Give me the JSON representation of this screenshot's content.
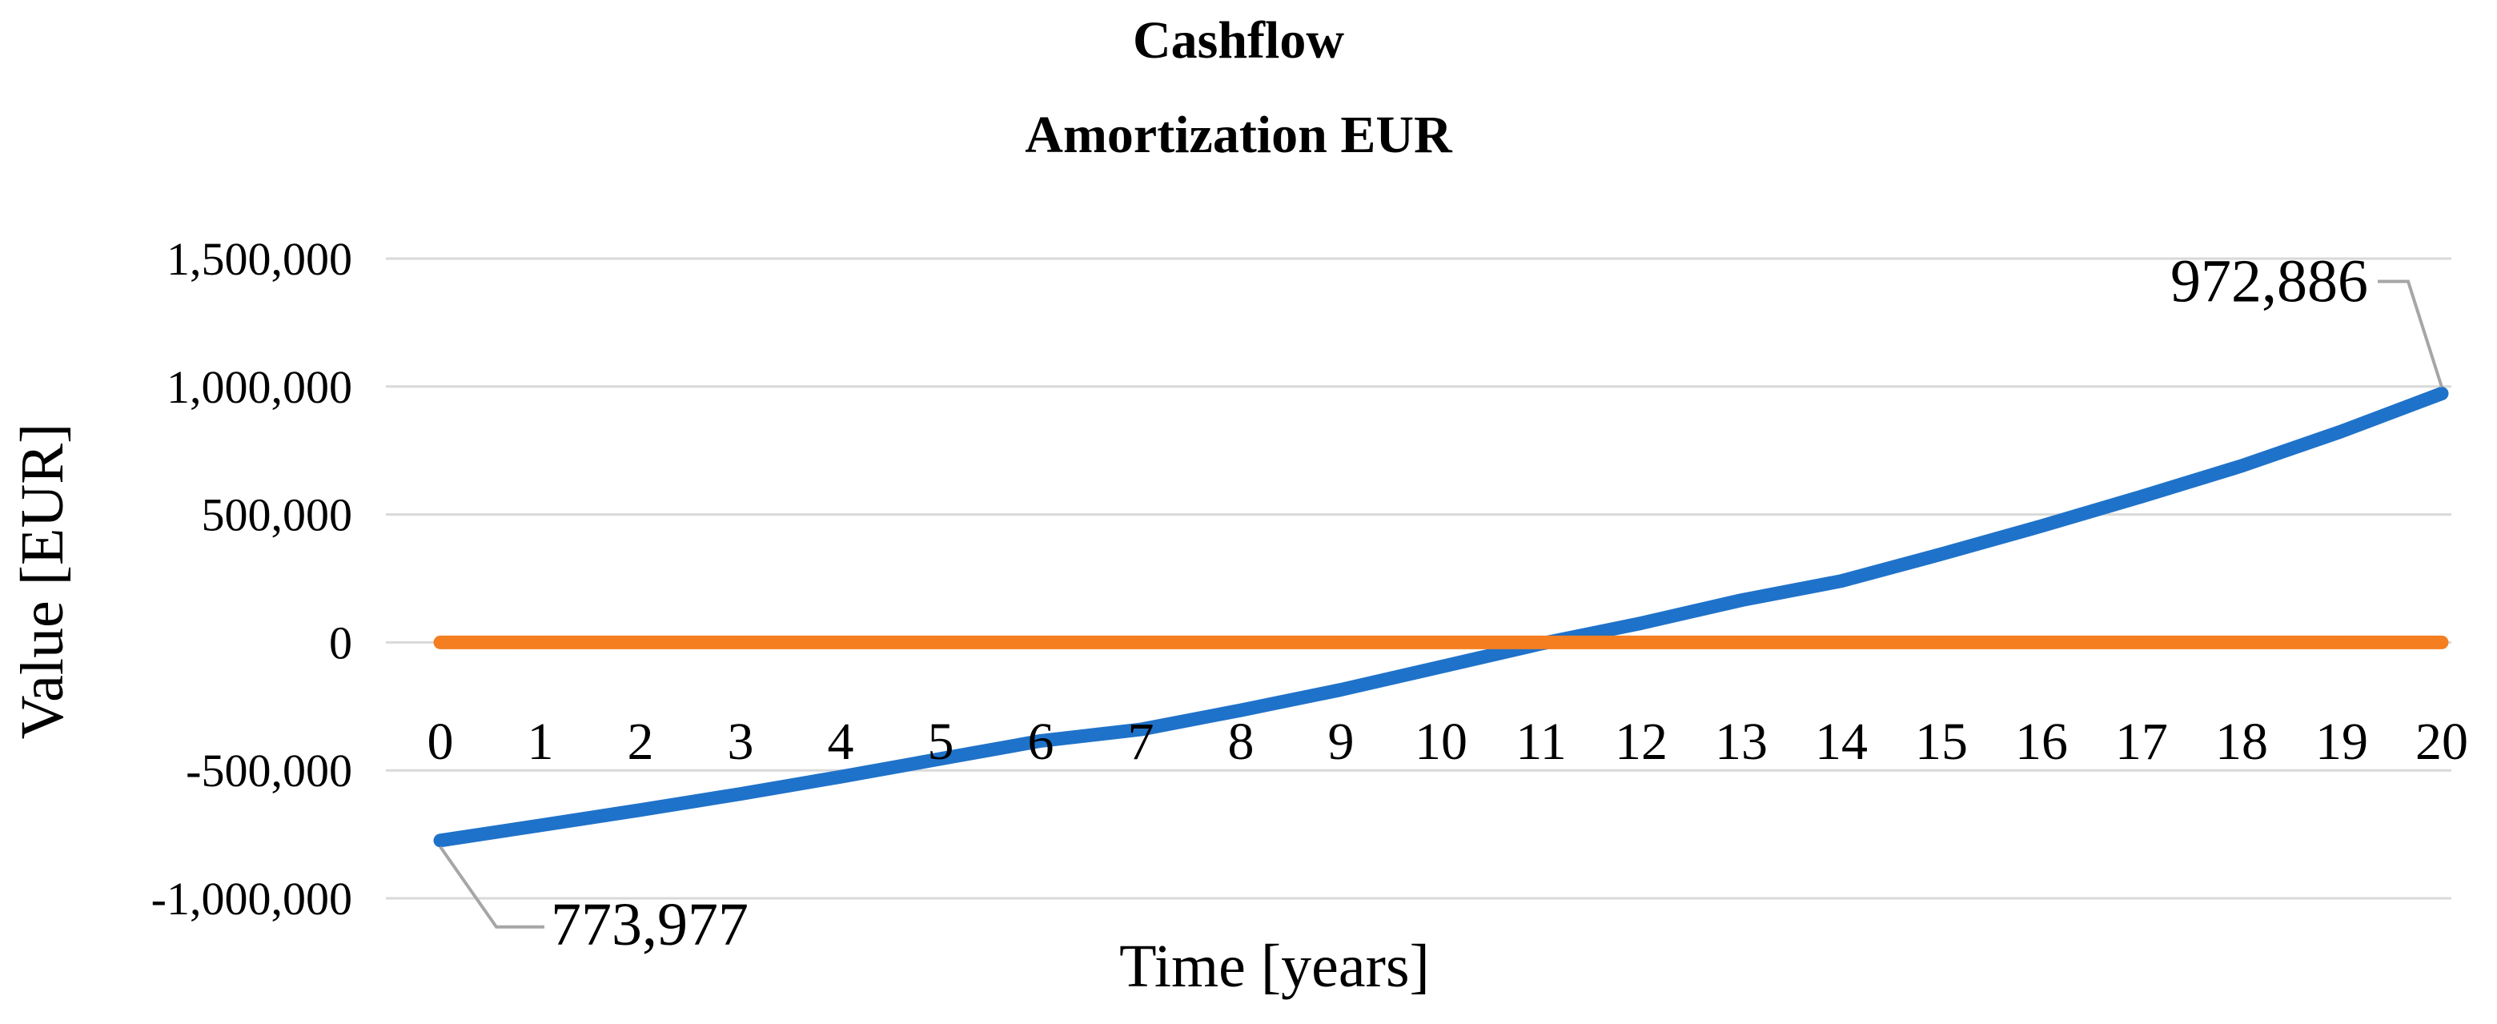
{
  "chart_data": {
    "type": "line",
    "title": "Cashflow",
    "subtitle": "Amortization EUR",
    "xlabel": "Time [years]",
    "ylabel": "Value [EUR]",
    "x": [
      0,
      1,
      2,
      3,
      4,
      5,
      6,
      7,
      8,
      9,
      10,
      11,
      12,
      13,
      14,
      15,
      16,
      17,
      18,
      19,
      20
    ],
    "ylim": [
      -1000000,
      1500000
    ],
    "yticks": [
      -1000000,
      -500000,
      0,
      500000,
      1000000,
      1500000
    ],
    "ytick_labels": [
      "-1,000,000",
      "-500,000",
      "0",
      "500,000",
      "1,000,000",
      "1,500,000"
    ],
    "grid": true,
    "series": [
      {
        "color": "#1f72c9",
        "values": [
          -773977,
          -715000,
          -655000,
          -592000,
          -525000,
          -455000,
          -385000,
          -340000,
          -265000,
          -185000,
          -95000,
          -5000,
          75000,
          165000,
          240000,
          345000,
          455000,
          570000,
          690000,
          825000,
          972886
        ]
      },
      {
        "color": "#f47e20",
        "values": [
          0,
          0,
          0,
          0,
          0,
          0,
          0,
          0,
          0,
          0,
          0,
          0,
          0,
          0,
          0,
          0,
          0,
          0,
          0,
          0,
          0
        ]
      }
    ],
    "annotations": [
      {
        "text": "773,977",
        "series": 0,
        "index": 0
      },
      {
        "text": "972,886",
        "series": 0,
        "index": 20
      }
    ],
    "colors": {
      "grid": "#d9d9d9",
      "leader": "#a6a6a6"
    }
  }
}
